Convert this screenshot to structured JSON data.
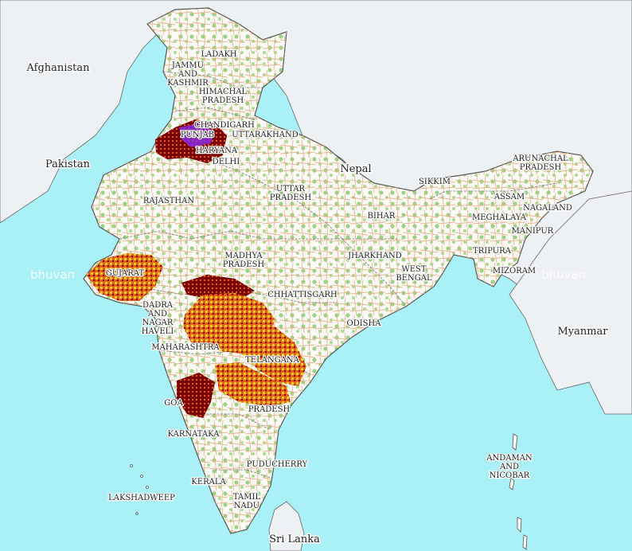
{
  "colors": {
    "sea": "#a9f0f7",
    "land_outside": "#eef1f4",
    "india_land": "#fbfaf6",
    "border": "#666666",
    "roads": "#e8a67a",
    "forest": "#8fd07a",
    "overlay_dark": "#7a0000",
    "overlay_mid": "#e0601a",
    "overlay_light": "#f5d020",
    "overlay_purple": "#8a2be2"
  },
  "countries": {
    "afghanistan": "Afghanistan",
    "pakistan": "Pakistan",
    "nepal": "Nepal",
    "myanmar": "Myanmar",
    "sri_lanka": "Sri Lanka"
  },
  "states": {
    "ladakh": "LADAKH",
    "jammu_1": "JAMMU",
    "jammu_2": "AND",
    "jammu_3": "KASHMIR",
    "himachal_1": "HIMACHAL",
    "himachal_2": "PRADESH",
    "chandigarh": "CHANDIGARH",
    "punjab": "PUNJAB",
    "uttarakhand": "UTTARAKHAND",
    "haryana": "HARYANA",
    "delhi": "DELHI",
    "rajasthan": "RAJASTHAN",
    "up_1": "UTTAR",
    "up_2": "PRADESH",
    "sikkim": "SIKKIM",
    "arunachal_1": "ARUNACHAL",
    "arunachal_2": "PRADESH",
    "assam": "ASSAM",
    "nagaland": "NAGALAND",
    "meghalaya": "MEGHALAYA",
    "manipur": "MANIPUR",
    "bihar": "BIHAR",
    "jharkhand": "JHARKHAND",
    "tripura": "TRIPURA",
    "mizoram": "MIZORAM",
    "wb_1": "WEST",
    "wb_2": "BENGAL",
    "mp_1": "MADHYA",
    "mp_2": "PRADESH",
    "gujarat": "GUJARAT",
    "chhattisgarh": "CHHATTISGARH",
    "odisha": "ODISHA",
    "dnh_1": "DADRA",
    "dnh_2": "AND",
    "dnh_3": "NAGAR",
    "dnh_4": "HAVELI",
    "maharashtra": "MAHARASHTRA",
    "telangana": "TELANGANA",
    "goa": "GOA",
    "ap": "PRADESH",
    "karnataka": "KARNATAKA",
    "puducherry": "PUDUCHERRY",
    "kerala": "KERALA",
    "tn_1": "TAMIL",
    "tn_2": "NADU",
    "lakshadweep": "LAKSHADWEEP",
    "andaman_1": "ANDAMAN",
    "andaman_2": "AND",
    "andaman_3": "NICOBAR"
  },
  "watermark": {
    "left": "bhuvan",
    "right": "bhuvan"
  }
}
